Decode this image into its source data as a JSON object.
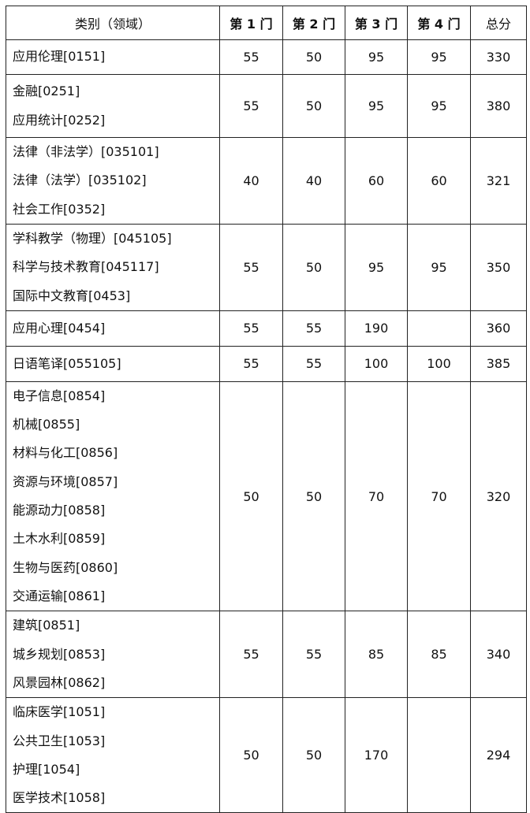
{
  "headers": [
    "类别（领域）",
    "第 1 门",
    "第 2 门",
    "第 3 门",
    "第 4 门",
    "总分"
  ],
  "rows": [
    {
      "categories": [
        "应用伦理[0151]"
      ],
      "s1": "55",
      "s2": "50",
      "s3": "95",
      "s4": "95",
      "total": "330"
    },
    {
      "categories": [
        "金融[0251]",
        "应用统计[0252]"
      ],
      "s1": "55",
      "s2": "50",
      "s3": "95",
      "s4": "95",
      "total": "380"
    },
    {
      "categories": [
        "法律（非法学）[035101]",
        "法律（法学）[035102]",
        "社会工作[0352]"
      ],
      "s1": "40",
      "s2": "40",
      "s3": "60",
      "s4": "60",
      "total": "321"
    },
    {
      "categories": [
        "学科教学（物理）[045105]",
        "科学与技术教育[045117]",
        "国际中文教育[0453]"
      ],
      "s1": "55",
      "s2": "50",
      "s3": "95",
      "s4": "95",
      "total": "350"
    },
    {
      "categories": [
        "应用心理[0454]"
      ],
      "s1": "55",
      "s2": "55",
      "s3": "190",
      "s4": "",
      "total": "360"
    },
    {
      "categories": [
        "日语笔译[055105]"
      ],
      "s1": "55",
      "s2": "55",
      "s3": "100",
      "s4": "100",
      "total": "385"
    },
    {
      "categories": [
        "电子信息[0854]",
        "机械[0855]",
        "材料与化工[0856]",
        "资源与环境[0857]",
        "能源动力[0858]",
        "土木水利[0859]",
        "生物与医药[0860]",
        "交通运输[0861]"
      ],
      "s1": "50",
      "s2": "50",
      "s3": "70",
      "s4": "70",
      "total": "320"
    },
    {
      "categories": [
        "建筑[0851]",
        "城乡规划[0853]",
        "风景园林[0862]"
      ],
      "s1": "55",
      "s2": "55",
      "s3": "85",
      "s4": "85",
      "total": "340"
    },
    {
      "categories": [
        "临床医学[1051]",
        "公共卫生[1053]",
        "护理[1054]",
        "医学技术[1058]"
      ],
      "s1": "50",
      "s2": "50",
      "s3": "170",
      "s4": "",
      "total": "294"
    }
  ]
}
